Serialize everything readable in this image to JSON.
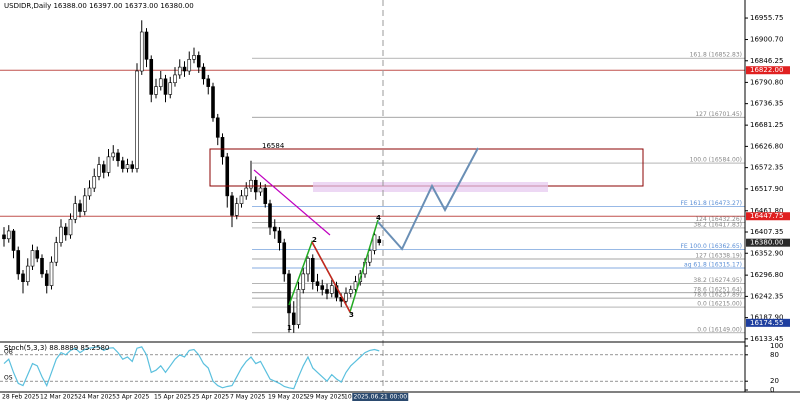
{
  "chart_data": [
    {
      "type": "candlestick",
      "title": "USDIDR,Daily  16388.00 16397.00 16373.00 16380.00",
      "categories": [
        "28 Feb 2025",
        null,
        null,
        null,
        null,
        null,
        null,
        null,
        "12 Mar 2025",
        null,
        null,
        null,
        null,
        null,
        null,
        null,
        "24 Mar 2025",
        null,
        null,
        null,
        null,
        null,
        null,
        null,
        "3 Apr 2025",
        null,
        null,
        null,
        null,
        null,
        null,
        null,
        "15 Apr 2025",
        null,
        null,
        null,
        null,
        null,
        null,
        null,
        "25 Apr 2025",
        null,
        null,
        null,
        null,
        null,
        null,
        null,
        "7 May 2025",
        null,
        null,
        null,
        null,
        null,
        null,
        null,
        "19 May 2025",
        null,
        null,
        null,
        null,
        null,
        null,
        null,
        "29 May 2025",
        null,
        null,
        null,
        null,
        null,
        null,
        null,
        "10 Jun 2025",
        null,
        null,
        null,
        null,
        null,
        null,
        "2025.06.21 00:00"
      ],
      "candles": [
        [
          16400,
          16420,
          16370,
          16390
        ],
        [
          16390,
          16425,
          16380,
          16410
        ],
        [
          16410,
          16415,
          16340,
          16360
        ],
        [
          16360,
          16370,
          16285,
          16300
        ],
        [
          16300,
          16310,
          16250,
          16280
        ],
        [
          16280,
          16340,
          16270,
          16320
        ],
        [
          16320,
          16375,
          16310,
          16360
        ],
        [
          16360,
          16370,
          16330,
          16340
        ],
        [
          16340,
          16350,
          16290,
          16300
        ],
        [
          16300,
          16310,
          16250,
          16270
        ],
        [
          16270,
          16345,
          16260,
          16330
        ],
        [
          16330,
          16395,
          16320,
          16380
        ],
        [
          16380,
          16440,
          16370,
          16420
        ],
        [
          16420,
          16430,
          16385,
          16400
        ],
        [
          16400,
          16455,
          16390,
          16440
        ],
        [
          16440,
          16500,
          16430,
          16480
        ],
        [
          16480,
          16490,
          16445,
          16460
        ],
        [
          16460,
          16520,
          16450,
          16500
        ],
        [
          16500,
          16540,
          16490,
          16520
        ],
        [
          16520,
          16570,
          16510,
          16550
        ],
        [
          16550,
          16600,
          16540,
          16580
        ],
        [
          16580,
          16590,
          16545,
          16560
        ],
        [
          16560,
          16620,
          16550,
          16600
        ],
        [
          16600,
          16630,
          16590,
          16610
        ],
        [
          16610,
          16620,
          16575,
          16590
        ],
        [
          16590,
          16600,
          16560,
          16570
        ],
        [
          16570,
          16595,
          16560,
          16580
        ],
        [
          16580,
          16590,
          16560,
          16570
        ],
        [
          16570,
          16840,
          16560,
          16820
        ],
        [
          16820,
          16950,
          16810,
          16920
        ],
        [
          16920,
          16930,
          16830,
          16850
        ],
        [
          16850,
          16860,
          16740,
          16760
        ],
        [
          16760,
          16800,
          16750,
          16780
        ],
        [
          16780,
          16820,
          16770,
          16800
        ],
        [
          16800,
          16810,
          16740,
          16760
        ],
        [
          16760,
          16805,
          16750,
          16790
        ],
        [
          16790,
          16830,
          16780,
          16810
        ],
        [
          16810,
          16850,
          16800,
          16830
        ],
        [
          16830,
          16845,
          16805,
          16820
        ],
        [
          16820,
          16870,
          16810,
          16850
        ],
        [
          16850,
          16880,
          16840,
          16860
        ],
        [
          16860,
          16870,
          16815,
          16830
        ],
        [
          16830,
          16840,
          16785,
          16800
        ],
        [
          16800,
          16810,
          16760,
          16780
        ],
        [
          16780,
          16790,
          16690,
          16700
        ],
        [
          16700,
          16710,
          16630,
          16650
        ],
        [
          16650,
          16660,
          16580,
          16600
        ],
        [
          16600,
          16610,
          16470,
          16500
        ],
        [
          16500,
          16510,
          16420,
          16450
        ],
        [
          16450,
          16495,
          16440,
          16480
        ],
        [
          16480,
          16515,
          16470,
          16500
        ],
        [
          16500,
          16535,
          16490,
          16520
        ],
        [
          16520,
          16590,
          16510,
          16540
        ],
        [
          16540,
          16550,
          16490,
          16510
        ],
        [
          16510,
          16535,
          16500,
          16520
        ],
        [
          16520,
          16530,
          16470,
          16480
        ],
        [
          16480,
          16490,
          16400,
          16420
        ],
        [
          16420,
          16440,
          16390,
          16410
        ],
        [
          16410,
          16420,
          16360,
          16380
        ],
        [
          16380,
          16390,
          16280,
          16300
        ],
        [
          16300,
          16310,
          16150,
          16200
        ],
        [
          16200,
          16230,
          16149,
          16170
        ],
        [
          16170,
          16280,
          16160,
          16260
        ],
        [
          16260,
          16315,
          16250,
          16300
        ],
        [
          16300,
          16345,
          16280,
          16340
        ],
        [
          16340,
          16350,
          16260,
          16280
        ],
        [
          16280,
          16300,
          16255,
          16270
        ],
        [
          16270,
          16285,
          16245,
          16260
        ],
        [
          16260,
          16275,
          16235,
          16250
        ],
        [
          16250,
          16285,
          16240,
          16270
        ],
        [
          16270,
          16280,
          16230,
          16240
        ],
        [
          16240,
          16250,
          16215,
          16230
        ],
        [
          16230,
          16265,
          16220,
          16250
        ],
        [
          16250,
          16270,
          16240,
          16260
        ],
        [
          16260,
          16295,
          16250,
          16280
        ],
        [
          16280,
          16310,
          16270,
          16300
        ],
        [
          16300,
          16340,
          16290,
          16330
        ],
        [
          16330,
          16370,
          16320,
          16360
        ],
        [
          16360,
          16410,
          16350,
          16400
        ],
        [
          16388,
          16397,
          16373,
          16380
        ]
      ],
      "ylim": [
        16128,
        17002
      ],
      "yticks": [
        16955.75,
        {
          "value": 16900.7,
          "label": "16900.70"
        },
        16846.25,
        {
          "value": 16790.8,
          "label": "16790.80"
        },
        16736.35,
        16681.25,
        {
          "value": 16626.8,
          "label": "16626.80"
        },
        16572.35,
        {
          "value": 16517.9,
          "label": "16517.90"
        },
        {
          "value": 16461.8,
          "label": "16461.80"
        },
        16407.35,
        {
          "value": 16352.9,
          "label": "16352.90"
        },
        {
          "value": 16296.8,
          "label": "16296.80"
        },
        16242.35,
        {
          "value": 16187.9,
          "label": "16187.90"
        },
        16133.45
      ],
      "hlines": [
        {
          "value": 16822,
          "color": "#c0504d"
        },
        {
          "value": 16447.75,
          "color": "#c0504d"
        }
      ],
      "price_tags": [
        {
          "value": 16822,
          "label": "16822.00",
          "color": "#e02020"
        },
        {
          "value": 16447.75,
          "label": "16447.75",
          "color": "#e02020"
        },
        {
          "value": 16380,
          "label": "16380.00",
          "color": "#2b2b2b"
        },
        {
          "value": 16174.55,
          "label": "16174.55",
          "color": "#1f3f9f"
        }
      ],
      "levels": [
        {
          "value": 16852.83,
          "label": "161.8 (16852.83)",
          "color": "#888888"
        },
        {
          "value": 16701.45,
          "label": "127 (16701.45)",
          "color": "#888888"
        },
        {
          "value": 16584,
          "label": "100.0 (16584.00)",
          "color": "#888888"
        },
        {
          "value": 16473.27,
          "label": "FE 161.8 (16473.27)",
          "color": "#5b8fd6"
        },
        {
          "value": 16432.26,
          "label": "124 (16432.26)",
          "color": "#888888"
        },
        {
          "value": 16417.83,
          "label": "38.2 (16417.83)",
          "color": "#888888"
        },
        {
          "value": 16362.65,
          "label": "FE 100.0 (16362.65)",
          "color": "#5b8fd6"
        },
        {
          "value": 16338.19,
          "label": "127 (16338.19)",
          "color": "#888888"
        },
        {
          "value": 16315.17,
          "label": "ag 61.8 (16315.17)",
          "color": "#5b8fd6"
        },
        {
          "value": 16274.95,
          "label": "38.2 (16274.95)",
          "color": "#888888"
        },
        {
          "value": 16251.64,
          "label": "78.6 (16251.64)",
          "color": "#888888"
        },
        {
          "value": 16237.89,
          "label": "78.6 (16237.89)",
          "color": "#888888"
        },
        {
          "value": 16215,
          "label": "0.0 (16215.00)",
          "color": "#888888"
        },
        {
          "value": 16149,
          "label": "0.0 (16149.00)",
          "color": "#888888"
        }
      ],
      "annotations": [
        "16584",
        "1",
        "2",
        "3",
        "4"
      ]
    },
    {
      "type": "line",
      "title": "Stoch(5,3,3) 88.8889 85.2580",
      "series": [
        {
          "name": "Main",
          "color": "#5bc0de",
          "values": [
            60,
            70,
            40,
            15,
            10,
            35,
            60,
            55,
            30,
            10,
            40,
            70,
            85,
            80,
            90,
            95,
            85,
            92,
            95,
            97,
            98,
            90,
            95,
            96,
            85,
            70,
            75,
            65,
            95,
            98,
            80,
            40,
            45,
            55,
            40,
            55,
            70,
            80,
            75,
            90,
            92,
            80,
            60,
            50,
            20,
            10,
            5,
            8,
            10,
            30,
            50,
            65,
            75,
            60,
            65,
            45,
            25,
            20,
            15,
            8,
            5,
            3,
            30,
            55,
            75,
            50,
            40,
            30,
            20,
            35,
            25,
            18,
            40,
            55,
            65,
            75,
            85,
            90,
            92,
            88.8889
          ]
        }
      ],
      "ylim": [
        0,
        100
      ],
      "yticks": [
        100,
        80,
        20,
        0
      ],
      "levels": [
        {
          "value": 80,
          "label": "OB"
        },
        {
          "value": 20,
          "label": "OS"
        }
      ]
    }
  ]
}
